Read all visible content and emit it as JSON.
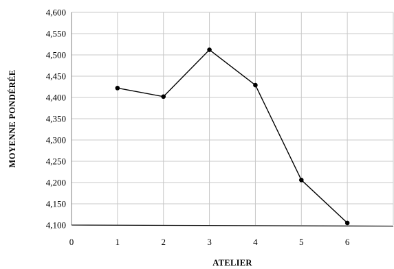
{
  "chart_data": {
    "type": "line",
    "title": "",
    "xlabel": "ATELIER",
    "ylabel": "MOYENNE PONDÉRÉE",
    "xlim": [
      0,
      7
    ],
    "ylim": [
      4.1,
      4.6
    ],
    "x_ticks": [
      "0",
      "1",
      "2",
      "3",
      "4",
      "5",
      "6"
    ],
    "y_ticks": [
      "4,100",
      "4,150",
      "4,200",
      "4,250",
      "4,300",
      "4,350",
      "4,400",
      "4,450",
      "4,500",
      "4,550",
      "4,600"
    ],
    "grid": true,
    "legend": "none",
    "series": [
      {
        "x": [
          1,
          2,
          3,
          4,
          5,
          6
        ],
        "values": [
          4.422,
          4.402,
          4.512,
          4.429,
          4.206,
          4.105
        ],
        "color": "#000000"
      }
    ]
  }
}
